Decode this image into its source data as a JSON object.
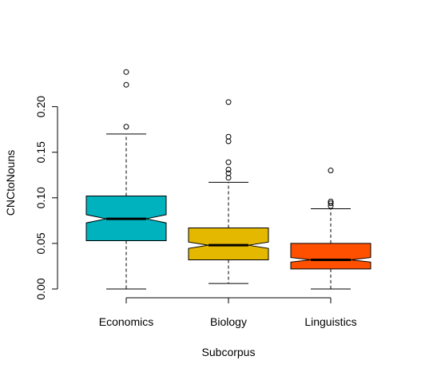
{
  "chart_data": {
    "type": "boxplot",
    "notched": true,
    "xlabel": "Subcorpus",
    "ylabel": "CNCtoNouns",
    "categories": [
      "Economics",
      "Biology",
      "Linguistics"
    ],
    "colors": [
      "#00B2BE",
      "#E5B800",
      "#FF5000"
    ],
    "ylim": [
      0.0,
      0.245
    ],
    "yticks": [
      0.0,
      0.05,
      0.1,
      0.15,
      0.2
    ],
    "ytick_labels": [
      "0.00",
      "0.05",
      "0.10",
      "0.15",
      "0.20"
    ],
    "boxes": [
      {
        "name": "Economics",
        "whisker_low": 0.0,
        "q1": 0.053,
        "median": 0.077,
        "q3": 0.102,
        "whisker_high": 0.17,
        "notch_low": 0.0725,
        "notch_high": 0.0815,
        "outliers": [
          0.178,
          0.224,
          0.238
        ]
      },
      {
        "name": "Biology",
        "whisker_low": 0.006,
        "q1": 0.032,
        "median": 0.048,
        "q3": 0.067,
        "whisker_high": 0.117,
        "notch_low": 0.0445,
        "notch_high": 0.0515,
        "outliers": [
          0.122,
          0.127,
          0.131,
          0.139,
          0.162,
          0.167,
          0.205
        ]
      },
      {
        "name": "Linguistics",
        "whisker_low": 0.0,
        "q1": 0.022,
        "median": 0.032,
        "q3": 0.05,
        "whisker_high": 0.088,
        "notch_low": 0.0295,
        "notch_high": 0.0345,
        "outliers": [
          0.091,
          0.094,
          0.096,
          0.13
        ]
      }
    ]
  }
}
